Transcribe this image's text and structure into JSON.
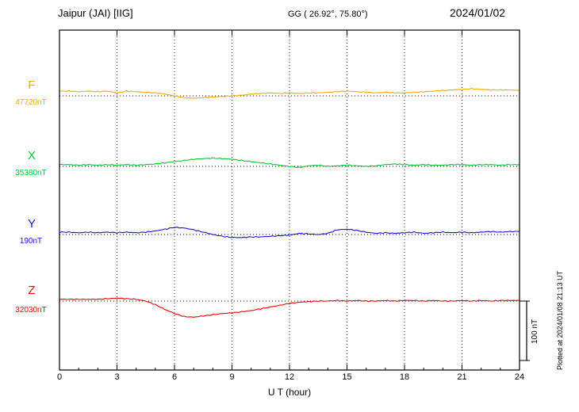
{
  "header": {
    "station": "Jaipur (JAI)  [IIG]",
    "coords": "GG ( 26.92°,  75.80°)",
    "date": "2024/01/02"
  },
  "x_axis": {
    "label": "U T (hour)",
    "ticks": [
      "0",
      "3",
      "6",
      "9",
      "12",
      "15",
      "18",
      "21",
      "24"
    ]
  },
  "scale_bar": {
    "label": "100 nT",
    "span_nT": 100
  },
  "plot_note": "Plotted at 2024/01/08 21:13 UT",
  "chart_data": {
    "type": "line",
    "title": "Jaipur (JAI) [IIG] magnetogram",
    "date": "2024/01/02",
    "xlabel": "U T (hour)",
    "x_range_hours": [
      0,
      24
    ],
    "x_step_hours": 0.5,
    "x_ticks": [
      0,
      3,
      6,
      9,
      12,
      15,
      18,
      21,
      24
    ],
    "grid": "vertical dotted lines every 3 h; dotted horizontal baseline per trace",
    "y_scale": "100 nT scale bar at lower right",
    "series": [
      {
        "name": "F",
        "color": "#f5a800",
        "baseline_label": "47720nT",
        "baseline_nT": 47720,
        "offsets_nT": [
          8,
          8,
          7,
          8,
          7,
          8,
          5,
          8,
          7,
          6,
          5,
          3,
          0,
          -3,
          -4,
          -3,
          -2,
          -1,
          0,
          1,
          3,
          4,
          5,
          4,
          5,
          4,
          5,
          5,
          6,
          7,
          8,
          7,
          6,
          5,
          6,
          5,
          5,
          6,
          7,
          8,
          9,
          10,
          11,
          12,
          11,
          10,
          10,
          10,
          9
        ]
      },
      {
        "name": "X",
        "color": "#00c832",
        "baseline_label": "35380nT",
        "baseline_nT": 35380,
        "offsets_nT": [
          3,
          3,
          2,
          3,
          2,
          3,
          2,
          3,
          2,
          3,
          4,
          6,
          8,
          10,
          12,
          13,
          14,
          13,
          12,
          10,
          8,
          6,
          4,
          2,
          0,
          -2,
          1,
          2,
          0,
          1,
          2,
          1,
          0,
          1,
          3,
          4,
          3,
          2,
          3,
          2,
          2,
          3,
          3,
          2,
          3,
          3,
          2,
          3,
          3
        ]
      },
      {
        "name": "Y",
        "color": "#1414dc",
        "baseline_label": "190nT",
        "baseline_nT": 190,
        "offsets_nT": [
          4,
          4,
          3,
          4,
          3,
          4,
          3,
          4,
          3,
          4,
          6,
          9,
          12,
          11,
          8,
          4,
          0,
          -3,
          -5,
          -5,
          -4,
          -4,
          -3,
          -2,
          -1,
          2,
          1,
          0,
          2,
          8,
          9,
          7,
          4,
          2,
          3,
          2,
          3,
          4,
          2,
          3,
          4,
          3,
          4,
          3,
          4,
          5,
          4,
          5,
          5
        ]
      },
      {
        "name": "Z",
        "color": "#f00000",
        "baseline_label": "32030nT",
        "baseline_nT": 32030,
        "offsets_nT": [
          3,
          3,
          3,
          3,
          3,
          4,
          5,
          4,
          3,
          0,
          -6,
          -14,
          -21,
          -26,
          -27,
          -25,
          -23,
          -21,
          -20,
          -18,
          -16,
          -13,
          -10,
          -7,
          -4,
          -2,
          -1,
          0,
          0,
          1,
          0,
          1,
          0,
          0,
          1,
          0,
          1,
          1,
          0,
          1,
          0,
          0,
          1,
          0,
          1,
          0,
          1,
          1,
          1
        ]
      }
    ]
  }
}
